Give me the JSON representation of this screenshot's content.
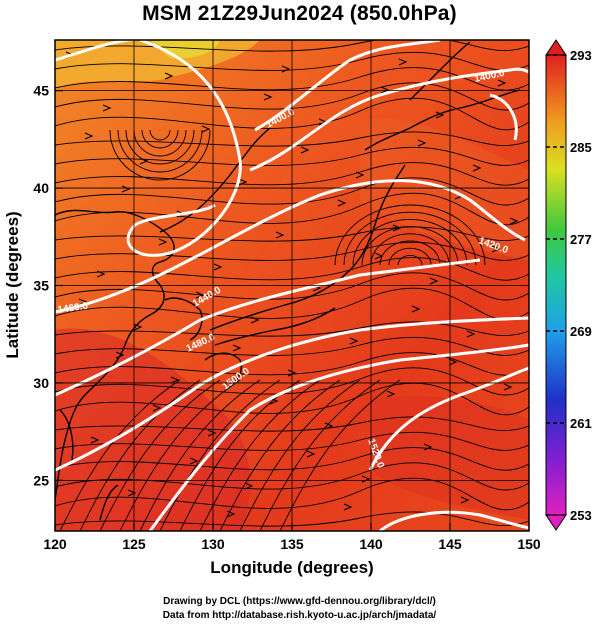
{
  "title": "MSM 21Z29Jun2024 (850.0hPa)",
  "x_axis": {
    "label": "Longitude (degrees)",
    "ticks": [
      "120",
      "125",
      "130",
      "135",
      "140",
      "145",
      "150"
    ],
    "range": [
      120,
      150
    ]
  },
  "y_axis": {
    "label": "Latitude  (degrees)",
    "ticks": [
      "25",
      "30",
      "35",
      "40",
      "45"
    ],
    "range": [
      22.4,
      47.6
    ]
  },
  "colorbar": {
    "ticks": [
      "253",
      "261",
      "269",
      "277",
      "285",
      "293"
    ],
    "min": 253,
    "max": 293
  },
  "contour_labels": [
    "1400.0",
    "1420.0",
    "1440.0",
    "1460.0",
    "1480.0",
    "1500.0",
    "1520.0"
  ],
  "credits": {
    "line1": "Drawing by DCL (https://www.gfd-dennou.org/library/dcl/)",
    "line2": "Data from http://database.rish.kyoto-u.ac.jp/arch/jmadata/"
  },
  "colors": {
    "field_warm": "#e8341c",
    "field_warmer": "#d81e1e",
    "field_cool": "#f07a1e",
    "field_coolest": "#f0d830",
    "contour": "#ffffff",
    "streamline": "#000000"
  }
}
